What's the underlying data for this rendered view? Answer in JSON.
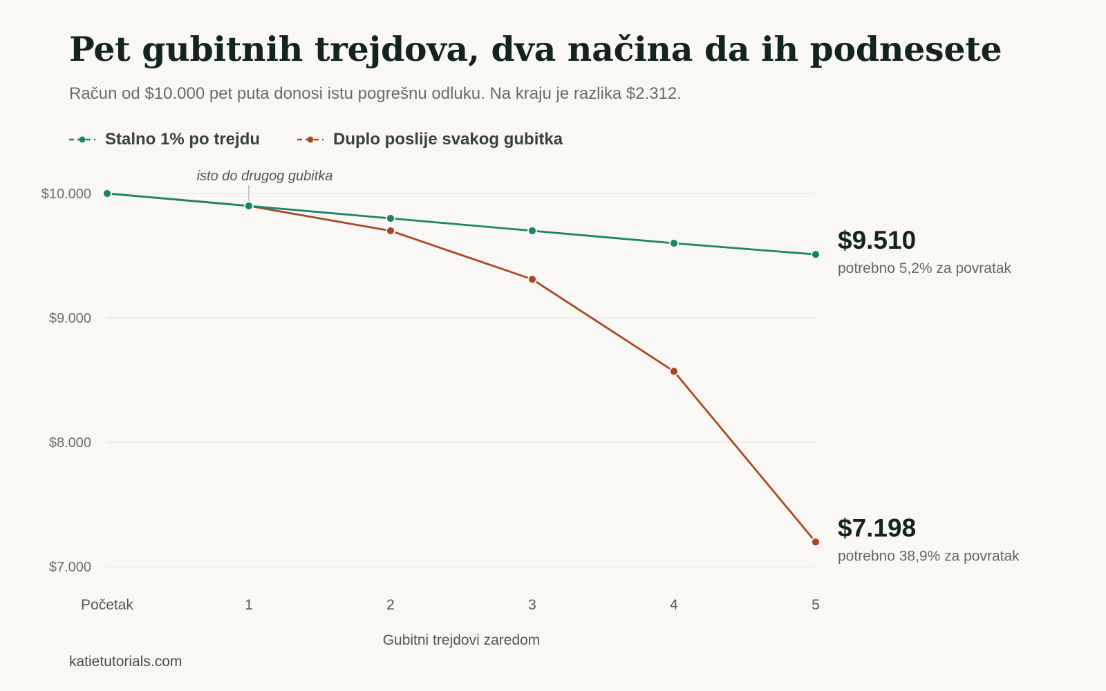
{
  "header": {
    "title": "Pet gubitnih trejdova, dva načina da ih podnesete",
    "subtitle": "Račun od $10.000 pet puta donosi istu pogrešnu odluku. Na kraju je razlika $2.312."
  },
  "legend": [
    {
      "label": "Stalno 1% po trejdu",
      "color": "#1a8468"
    },
    {
      "label": "Duplo poslije svakog gubitka",
      "color": "#aa4825"
    }
  ],
  "footer": {
    "source": "katietutorials.com"
  },
  "chart_data": {
    "type": "line",
    "title": "Pet gubitnih trejdova, dva načina da ih podnesete",
    "subtitle": "Račun od $10.000 pet puta donosi istu pogrešnu odluku. Na kraju je razlika $2.312.",
    "xlabel": "Gubitni trejdovi zaredom",
    "ylabel": "",
    "categories": [
      "Početak",
      "1",
      "2",
      "3",
      "4",
      "5"
    ],
    "ylim": [
      7000,
      10000
    ],
    "yticks": [
      10000,
      9000,
      8000,
      7000
    ],
    "ytick_labels": [
      "$10.000",
      "$9.000",
      "$8.000",
      "$7.000"
    ],
    "grid": true,
    "legend_position": "top-left",
    "series": [
      {
        "name": "Stalno 1% po trejdu",
        "color": "#1a8468",
        "values": [
          10000,
          9900,
          9800,
          9700,
          9600,
          9510
        ],
        "end_label": "$9.510",
        "end_note": "potrebno 5,2% za povratak"
      },
      {
        "name": "Duplo poslije svakog gubitka",
        "color": "#aa4825",
        "values": [
          10000,
          9900,
          9700,
          9310,
          8570,
          7198
        ],
        "end_label": "$7.198",
        "end_note": "potrebno 38,9% za povratak"
      }
    ],
    "annotations": [
      {
        "text": "isto do drugog gubitka",
        "x": "1"
      }
    ]
  }
}
